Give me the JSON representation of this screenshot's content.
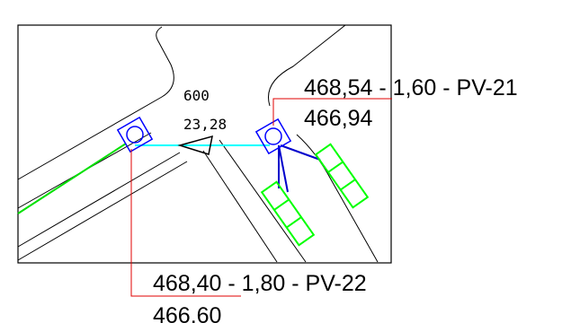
{
  "pipe_segment": {
    "length": "600",
    "slope": "23,28"
  },
  "manholes": {
    "pv21": {
      "label": "468,54 - 1,60 - PV-21",
      "bottom_elevation": "466,94"
    },
    "pv22": {
      "label": "468,40 - 1,80 - PV-22",
      "bottom_elevation": "466,60"
    }
  },
  "colors": {
    "background": "#ffffff",
    "linework": "#000000",
    "manhole_symbol": "#0000ff",
    "main_pipe": "#00ffff",
    "branch_pipe": "#0000cc",
    "storm_inlet": "#00ff00",
    "existing_pipe": "#00e000",
    "leader_line": "#e00000"
  },
  "icons": {
    "manhole": "manhole-circle-in-rotated-square-icon",
    "flow_direction": "flow-arrow-triangle-icon",
    "storm_inlet": "storm-inlet-grate-icon"
  }
}
